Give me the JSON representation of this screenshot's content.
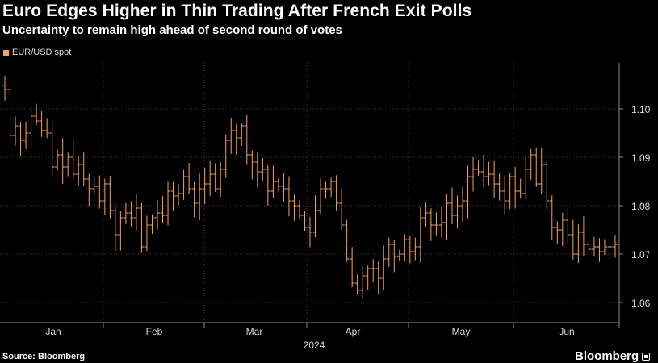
{
  "header": {
    "title": "Euro Edges Higher in Thin Trading After French Exit Polls",
    "subtitle": "Uncertainty to remain high ahead of second round of votes"
  },
  "footer": {
    "source": "Source: Bloomberg",
    "brand": "Bloomberg"
  },
  "colors": {
    "background": "#000000",
    "series": "#f4a261",
    "grid": "#3a3a3a",
    "text": "#ffffff",
    "axis_text": "#d9d9d9"
  },
  "chart_data": {
    "type": "ohlc",
    "title": "Euro Edges Higher in Thin Trading After French Exit Polls",
    "subtitle": "Uncertainty to remain high ahead of second round of votes",
    "legend": [
      "EUR/USD spot"
    ],
    "legend_position": "top-left",
    "x_axis": {
      "month_labels": [
        "Jan",
        "Feb",
        "Mar",
        "Apr",
        "May",
        "Jun"
      ],
      "year_label": "2024"
    },
    "y_axis": {
      "position": "right",
      "range": [
        1.057,
        1.11
      ],
      "ticks": [
        1.06,
        1.07,
        1.08,
        1.09,
        1.1
      ],
      "tick_labels": [
        "1.06",
        "1.07",
        "1.08",
        "1.09",
        "1.10"
      ]
    },
    "grid": true,
    "series": [
      {
        "name": "EUR/USD spot",
        "close": [
          1.104,
          1.0945,
          1.0965,
          1.0935,
          1.095,
          1.0985,
          1.0975,
          1.0955,
          1.095,
          1.088,
          1.0905,
          1.088,
          1.09,
          1.0865,
          1.0885,
          1.0855,
          1.0835,
          1.084,
          1.081,
          1.0845,
          1.079,
          1.074,
          1.0775,
          1.0785,
          1.0775,
          1.0795,
          1.0715,
          1.076,
          1.0775,
          1.0785,
          1.078,
          1.083,
          1.082,
          1.0825,
          1.086,
          1.0835,
          1.0805,
          1.0835,
          1.0845,
          1.0865,
          1.0835,
          1.0875,
          1.0935,
          1.0955,
          1.094,
          1.0965,
          1.0905,
          1.089,
          1.087,
          1.0875,
          1.083,
          1.085,
          1.084,
          1.0835,
          1.081,
          1.08,
          1.078,
          1.0755,
          1.0745,
          1.079,
          1.0835,
          1.0835,
          1.085,
          1.0805,
          1.076,
          1.069,
          1.064,
          1.0625,
          1.0655,
          1.067,
          1.067,
          1.065,
          1.069,
          1.072,
          1.0695,
          1.07,
          1.073,
          1.0705,
          1.0715,
          1.0775,
          1.0785,
          1.076,
          1.076,
          1.0765,
          1.0805,
          1.078,
          1.08,
          1.081,
          1.086,
          1.0875,
          1.087,
          1.086,
          1.0865,
          1.0845,
          1.083,
          1.081,
          1.086,
          1.083,
          1.0825,
          1.0875,
          1.0905,
          1.0845,
          1.0885,
          1.081,
          1.0755,
          1.075,
          1.077,
          1.074,
          1.07,
          1.0745,
          1.072,
          1.071,
          1.0715,
          1.0705,
          1.0715,
          1.0715,
          1.072
        ]
      }
    ]
  }
}
